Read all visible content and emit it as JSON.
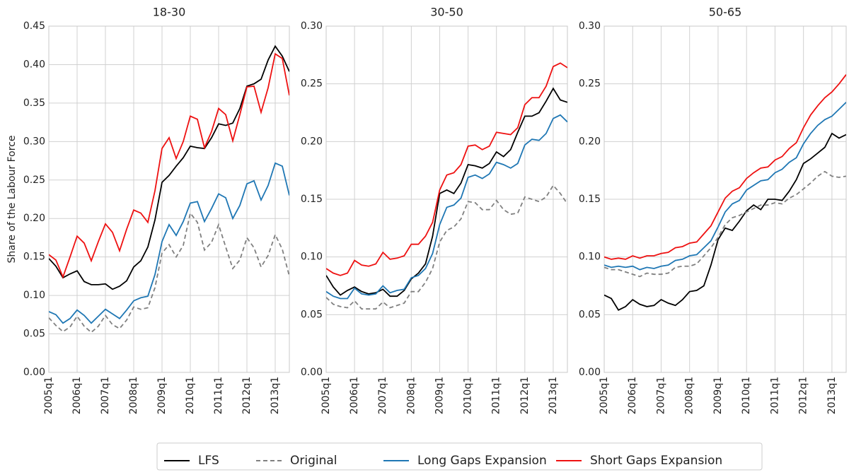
{
  "chart_data": [
    {
      "type": "line",
      "title": "18-30",
      "y_label": "Share of the Labour Force",
      "grid": true,
      "categories": [
        "2005q1",
        null,
        null,
        null,
        "2006q1",
        null,
        null,
        null,
        "2007q1",
        null,
        null,
        null,
        "2008q1",
        null,
        null,
        null,
        "2009q1",
        null,
        null,
        null,
        "2010q1",
        null,
        null,
        null,
        "2011q1",
        null,
        null,
        null,
        "2012q1",
        null,
        null,
        null,
        "2013q1",
        null,
        null
      ],
      "ylim": [
        0,
        0.45
      ],
      "yticks": [
        {
          "value": 0,
          "label": "0.00"
        },
        {
          "value": 0.05,
          "label": "0.05"
        },
        {
          "value": 0.1,
          "label": "0.10"
        },
        {
          "value": 0.15,
          "label": "0.15"
        },
        {
          "value": 0.2,
          "label": "0.20"
        },
        {
          "value": 0.25,
          "label": "0.25"
        },
        {
          "value": 0.3,
          "label": "0.30"
        },
        {
          "value": 0.35,
          "label": "0.35"
        },
        {
          "value": 0.4,
          "label": "0.40"
        },
        {
          "value": 0.45,
          "label": "0.45"
        }
      ],
      "series": [
        {
          "name": "LFS",
          "color": "#000000",
          "linestyle": "solid",
          "values": [
            0.148,
            0.138,
            0.123,
            0.128,
            0.132,
            0.118,
            0.114,
            0.114,
            0.115,
            0.108,
            0.112,
            0.119,
            0.137,
            0.145,
            0.163,
            0.198,
            0.247,
            0.256,
            0.268,
            0.279,
            0.294,
            0.292,
            0.291,
            0.305,
            0.323,
            0.321,
            0.324,
            0.343,
            0.372,
            0.375,
            0.381,
            0.406,
            0.424,
            0.411,
            0.391
          ]
        },
        {
          "name": "Original",
          "color": "#808080",
          "linestyle": "dashed",
          "values": [
            0.071,
            0.061,
            0.053,
            0.059,
            0.073,
            0.06,
            0.052,
            0.06,
            0.074,
            0.062,
            0.057,
            0.068,
            0.085,
            0.082,
            0.084,
            0.11,
            0.155,
            0.166,
            0.15,
            0.165,
            0.207,
            0.195,
            0.159,
            0.169,
            0.192,
            0.163,
            0.135,
            0.146,
            0.175,
            0.162,
            0.137,
            0.152,
            0.179,
            0.16,
            0.125
          ]
        },
        {
          "name": "Long Gaps Expansion",
          "color": "#1f77b4",
          "linestyle": "solid",
          "values": [
            0.079,
            0.075,
            0.064,
            0.07,
            0.081,
            0.074,
            0.064,
            0.073,
            0.082,
            0.076,
            0.07,
            0.081,
            0.093,
            0.097,
            0.099,
            0.127,
            0.17,
            0.192,
            0.178,
            0.196,
            0.22,
            0.222,
            0.196,
            0.213,
            0.232,
            0.227,
            0.2,
            0.217,
            0.245,
            0.249,
            0.224,
            0.243,
            0.272,
            0.268,
            0.23
          ]
        },
        {
          "name": "Short Gaps Expansion",
          "color": "#ee1111",
          "linestyle": "solid",
          "values": [
            0.153,
            0.146,
            0.124,
            0.15,
            0.177,
            0.168,
            0.145,
            0.17,
            0.193,
            0.182,
            0.158,
            0.186,
            0.211,
            0.207,
            0.195,
            0.236,
            0.291,
            0.305,
            0.278,
            0.3,
            0.333,
            0.329,
            0.292,
            0.313,
            0.343,
            0.335,
            0.301,
            0.335,
            0.371,
            0.372,
            0.338,
            0.37,
            0.414,
            0.408,
            0.36
          ]
        }
      ]
    },
    {
      "type": "line",
      "title": "30-50",
      "grid": true,
      "categories": [
        "2005q1",
        null,
        null,
        null,
        "2006q1",
        null,
        null,
        null,
        "2007q1",
        null,
        null,
        null,
        "2008q1",
        null,
        null,
        null,
        "2009q1",
        null,
        null,
        null,
        "2010q1",
        null,
        null,
        null,
        "2011q1",
        null,
        null,
        null,
        "2012q1",
        null,
        null,
        null,
        "2013q1",
        null,
        null
      ],
      "ylim": [
        0,
        0.3
      ],
      "yticks": [
        {
          "value": 0,
          "label": "0.00"
        },
        {
          "value": 0.05,
          "label": "0.05"
        },
        {
          "value": 0.1,
          "label": "0.10"
        },
        {
          "value": 0.15,
          "label": "0.15"
        },
        {
          "value": 0.2,
          "label": "0.20"
        },
        {
          "value": 0.25,
          "label": "0.25"
        },
        {
          "value": 0.3,
          "label": "0.30"
        }
      ],
      "series": [
        {
          "name": "LFS",
          "color": "#000000",
          "linestyle": "solid",
          "values": [
            0.084,
            0.074,
            0.067,
            0.071,
            0.074,
            0.07,
            0.068,
            0.069,
            0.072,
            0.066,
            0.066,
            0.071,
            0.081,
            0.086,
            0.094,
            0.118,
            0.155,
            0.158,
            0.155,
            0.164,
            0.18,
            0.179,
            0.177,
            0.181,
            0.191,
            0.187,
            0.193,
            0.208,
            0.222,
            0.222,
            0.225,
            0.235,
            0.246,
            0.236,
            0.234
          ]
        },
        {
          "name": "Original",
          "color": "#808080",
          "linestyle": "dashed",
          "values": [
            0.065,
            0.059,
            0.057,
            0.056,
            0.062,
            0.055,
            0.055,
            0.055,
            0.061,
            0.056,
            0.058,
            0.06,
            0.07,
            0.07,
            0.078,
            0.09,
            0.113,
            0.123,
            0.126,
            0.133,
            0.148,
            0.147,
            0.141,
            0.141,
            0.149,
            0.141,
            0.137,
            0.138,
            0.152,
            0.15,
            0.148,
            0.152,
            0.162,
            0.155,
            0.146
          ]
        },
        {
          "name": "Long Gaps Expansion",
          "color": "#1f77b4",
          "linestyle": "solid",
          "values": [
            0.07,
            0.066,
            0.064,
            0.064,
            0.073,
            0.068,
            0.067,
            0.068,
            0.075,
            0.069,
            0.071,
            0.072,
            0.082,
            0.084,
            0.09,
            0.103,
            0.128,
            0.143,
            0.145,
            0.151,
            0.169,
            0.171,
            0.168,
            0.172,
            0.182,
            0.18,
            0.177,
            0.181,
            0.197,
            0.202,
            0.201,
            0.207,
            0.22,
            0.223,
            0.217
          ]
        },
        {
          "name": "Short Gaps Expansion",
          "color": "#ee1111",
          "linestyle": "solid",
          "values": [
            0.09,
            0.086,
            0.084,
            0.086,
            0.097,
            0.093,
            0.092,
            0.094,
            0.104,
            0.098,
            0.099,
            0.101,
            0.111,
            0.111,
            0.118,
            0.13,
            0.158,
            0.171,
            0.173,
            0.18,
            0.196,
            0.197,
            0.193,
            0.196,
            0.208,
            0.207,
            0.206,
            0.212,
            0.232,
            0.238,
            0.238,
            0.248,
            0.265,
            0.268,
            0.264
          ]
        }
      ]
    },
    {
      "type": "line",
      "title": "50-65",
      "grid": true,
      "categories": [
        "2005q1",
        null,
        null,
        null,
        "2006q1",
        null,
        null,
        null,
        "2007q1",
        null,
        null,
        null,
        "2008q1",
        null,
        null,
        null,
        "2009q1",
        null,
        null,
        null,
        "2010q1",
        null,
        null,
        null,
        "2011q1",
        null,
        null,
        null,
        "2012q1",
        null,
        null,
        null,
        "2013q1",
        null,
        null
      ],
      "ylim": [
        0,
        0.3
      ],
      "yticks": [
        {
          "value": 0,
          "label": "0.00"
        },
        {
          "value": 0.05,
          "label": "0.05"
        },
        {
          "value": 0.1,
          "label": "0.10"
        },
        {
          "value": 0.15,
          "label": "0.15"
        },
        {
          "value": 0.2,
          "label": "0.20"
        },
        {
          "value": 0.25,
          "label": "0.25"
        },
        {
          "value": 0.3,
          "label": "0.30"
        }
      ],
      "series": [
        {
          "name": "LFS",
          "color": "#000000",
          "linestyle": "solid",
          "values": [
            0.067,
            0.064,
            0.054,
            0.057,
            0.063,
            0.059,
            0.057,
            0.058,
            0.063,
            0.06,
            0.058,
            0.063,
            0.07,
            0.071,
            0.075,
            0.093,
            0.115,
            0.125,
            0.123,
            0.131,
            0.14,
            0.145,
            0.141,
            0.15,
            0.15,
            0.149,
            0.157,
            0.167,
            0.181,
            0.185,
            0.19,
            0.195,
            0.207,
            0.203,
            0.206
          ]
        },
        {
          "name": "Original",
          "color": "#808080",
          "linestyle": "dashed",
          "values": [
            0.091,
            0.089,
            0.089,
            0.087,
            0.085,
            0.083,
            0.086,
            0.085,
            0.085,
            0.086,
            0.091,
            0.092,
            0.092,
            0.094,
            0.101,
            0.108,
            0.117,
            0.128,
            0.134,
            0.136,
            0.139,
            0.142,
            0.145,
            0.145,
            0.147,
            0.146,
            0.151,
            0.154,
            0.159,
            0.164,
            0.17,
            0.174,
            0.17,
            0.169,
            0.17
          ]
        },
        {
          "name": "Long Gaps Expansion",
          "color": "#1f77b4",
          "linestyle": "solid",
          "values": [
            0.093,
            0.091,
            0.092,
            0.091,
            0.092,
            0.089,
            0.091,
            0.09,
            0.092,
            0.093,
            0.097,
            0.098,
            0.101,
            0.102,
            0.108,
            0.114,
            0.126,
            0.139,
            0.146,
            0.149,
            0.158,
            0.162,
            0.166,
            0.167,
            0.173,
            0.176,
            0.182,
            0.186,
            0.198,
            0.207,
            0.214,
            0.219,
            0.222,
            0.228,
            0.234
          ]
        },
        {
          "name": "Short Gaps Expansion",
          "color": "#ee1111",
          "linestyle": "solid",
          "values": [
            0.1,
            0.098,
            0.099,
            0.098,
            0.101,
            0.099,
            0.101,
            0.101,
            0.103,
            0.104,
            0.108,
            0.109,
            0.112,
            0.113,
            0.12,
            0.127,
            0.139,
            0.151,
            0.157,
            0.16,
            0.168,
            0.173,
            0.177,
            0.178,
            0.184,
            0.187,
            0.194,
            0.199,
            0.212,
            0.223,
            0.231,
            0.238,
            0.243,
            0.25,
            0.258
          ]
        }
      ]
    }
  ]
}
